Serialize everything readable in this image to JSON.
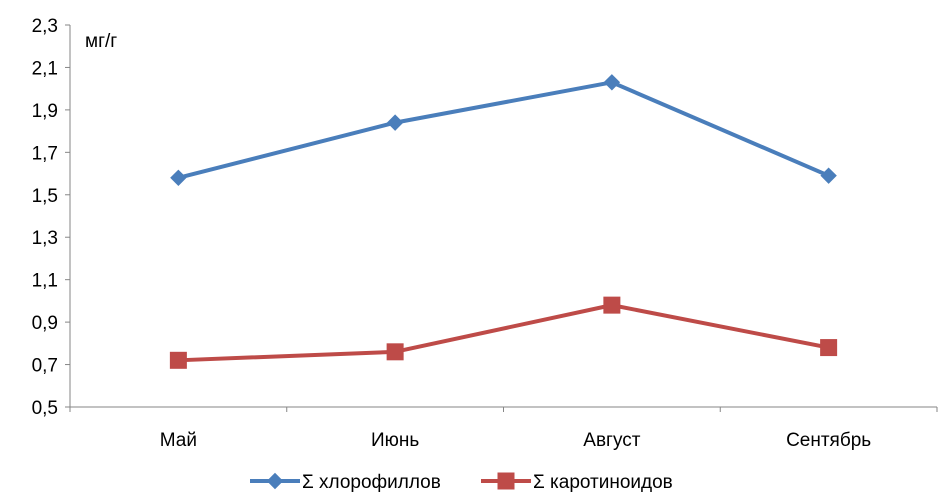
{
  "chart_data": {
    "type": "line",
    "title": "",
    "xlabel": "",
    "ylabel": "мг/г",
    "categories": [
      "Май",
      "Июнь",
      "Август",
      "Сентябрь"
    ],
    "ylim": [
      0.5,
      2.3
    ],
    "yticks": [
      "0,5",
      "0,7",
      "0,9",
      "1,1",
      "1,3",
      "1,5",
      "1,7",
      "1,9",
      "2,1",
      "2,3"
    ],
    "grid": false,
    "legend_position": "bottom",
    "series": [
      {
        "name": "Σ хлорофиллов",
        "values": [
          1.58,
          1.84,
          2.03,
          1.59
        ],
        "color": "#4a7ebb",
        "marker": "diamond"
      },
      {
        "name": "Σ каротиноидов",
        "values": [
          0.72,
          0.76,
          0.98,
          0.78
        ],
        "color": "#be4b48",
        "marker": "square"
      }
    ]
  }
}
